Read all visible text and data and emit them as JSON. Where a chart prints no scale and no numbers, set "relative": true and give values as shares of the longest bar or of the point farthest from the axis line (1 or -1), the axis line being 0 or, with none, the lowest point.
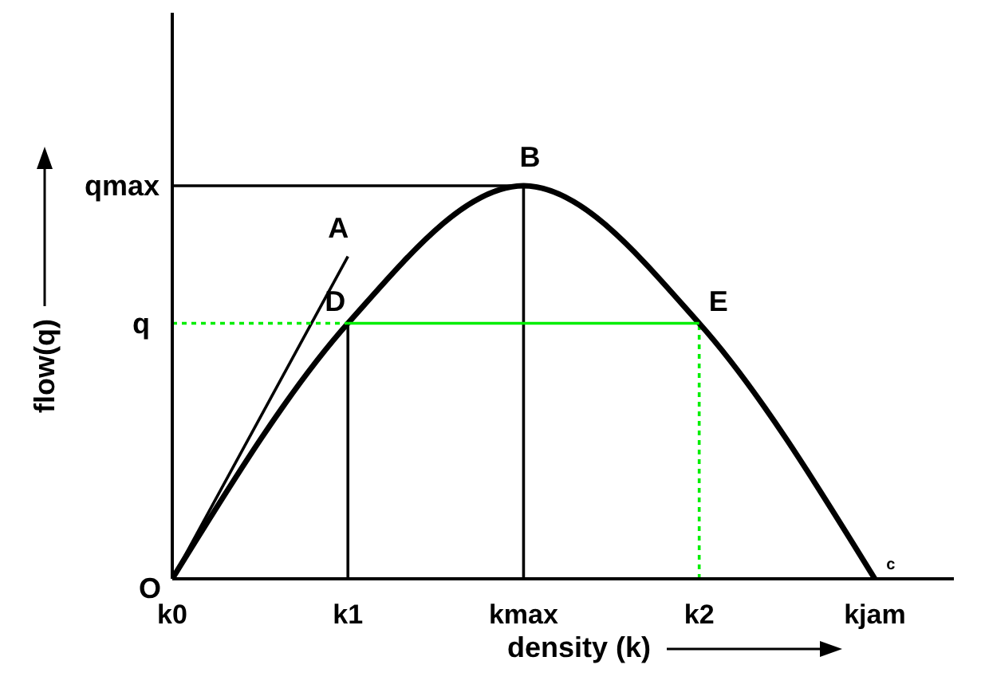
{
  "chart_data": {
    "type": "line",
    "xlabel": "density (k)",
    "ylabel": "flow(q)",
    "relative": true,
    "categories": [
      "k0",
      "k1",
      "kmax",
      "k2",
      "kjam"
    ],
    "series": [
      {
        "color": "#000000",
        "values": [
          0,
          0.65,
          1,
          0.65,
          0
        ]
      },
      {
        "color": "#000000",
        "values": [
          0,
          0.82,
          null,
          null,
          null
        ]
      },
      {
        "color": "#000000",
        "values": [
          1,
          1,
          1,
          null,
          null
        ]
      },
      {
        "color": "#00ee00",
        "values": [
          null,
          0.65,
          0.65,
          0.65,
          null
        ]
      },
      {
        "color": "#00ee00",
        "line_style": "dotted",
        "values": [
          0.65,
          0.65,
          null,
          null,
          null
        ]
      }
    ],
    "ref_lines": [
      {
        "axis": "x",
        "value": "k1",
        "color": "#000000"
      },
      {
        "axis": "x",
        "value": "kmax",
        "color": "#000000"
      },
      {
        "axis": "x",
        "value": "k2",
        "color": "#00ee00",
        "line_style": "dotted"
      }
    ],
    "annotations": [
      {
        "text": "O",
        "x": "k0",
        "y": 0
      },
      {
        "text": "A",
        "x": "k1",
        "y": 0.82
      },
      {
        "text": "B",
        "x": "kmax",
        "y": 1
      },
      {
        "text": "D",
        "x": "k1",
        "y": 0.65
      },
      {
        "text": "E",
        "x": "k2",
        "y": 0.65
      },
      {
        "text": "c",
        "x": "kjam",
        "y": 0
      },
      {
        "text": "q",
        "x": "k0",
        "y": 0.65
      },
      {
        "text": "qmax",
        "x": "k0",
        "y": 1
      }
    ]
  }
}
